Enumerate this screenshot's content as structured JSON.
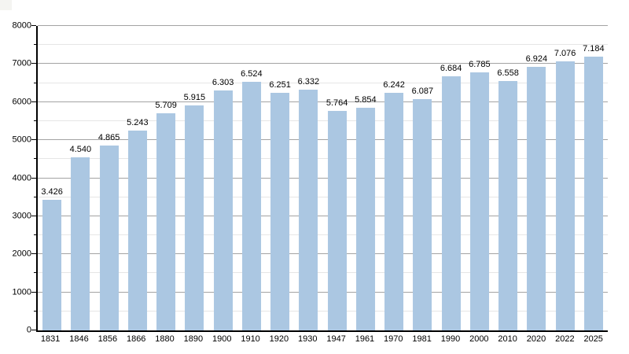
{
  "chart_data": {
    "type": "bar",
    "title": "",
    "xlabel": "",
    "ylabel": "",
    "categories": [
      "1831",
      "1846",
      "1856",
      "1866",
      "1880",
      "1890",
      "1900",
      "1910",
      "1920",
      "1930",
      "1947",
      "1961",
      "1970",
      "1981",
      "1990",
      "2000",
      "2010",
      "2020",
      "2022",
      "2025"
    ],
    "values": [
      3426,
      4540,
      4865,
      5243,
      5709,
      5915,
      6303,
      6524,
      6251,
      6332,
      5764,
      5854,
      6242,
      6087,
      6684,
      6785,
      6558,
      6924,
      7076,
      7184
    ],
    "value_labels": [
      "3.426",
      "4.540",
      "4.865",
      "5.243",
      "5.709",
      "5.915",
      "6.303",
      "6.524",
      "6.251",
      "6.332",
      "5.764",
      "5.854",
      "6.242",
      "6.087",
      "6.684",
      "6.785",
      "6.558",
      "6.924",
      "7.076",
      "7.184"
    ],
    "ylim": [
      0,
      8000
    ],
    "y_major_step": 1000,
    "y_minor_step": 500,
    "y_tick_labels": [
      "0",
      "1000",
      "2000",
      "3000",
      "4000",
      "5000",
      "6000",
      "7000",
      "8000"
    ],
    "legend": null,
    "grid": "horizontal, major every 1000 + faint minor every 500",
    "layout": "single series, value labels above bars, no title, no legend",
    "colors": {
      "bar": "#abc7e2",
      "grid_major": "#a3a3a3",
      "grid_minor": "#e6e6e6",
      "axis": "#000000",
      "background": "#ffffff",
      "text": "#000000"
    }
  }
}
